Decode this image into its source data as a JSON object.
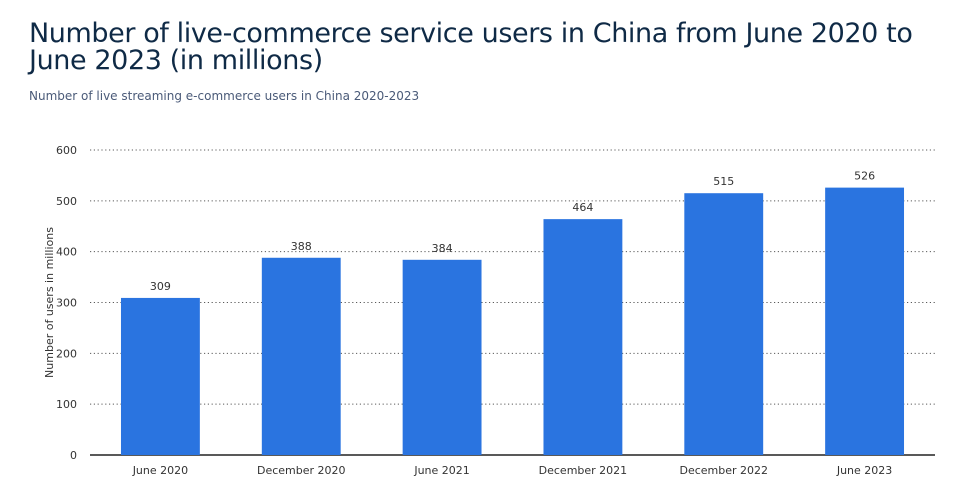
{
  "title": "Number of live-commerce service users in China from June 2020 to June 2023 (in millions)",
  "subtitle": "Number of live streaming e-commerce users in China 2020-2023",
  "colors": {
    "bar": "#2a74e0",
    "text": "#333333",
    "grid": "#5a5a5a",
    "title": "#0f2a46"
  },
  "chart_data": {
    "type": "bar",
    "title": "Number of live-commerce service users in China from June 2020 to June 2023 (in millions)",
    "subtitle": "Number of live streaming e-commerce users in China 2020-2023",
    "xlabel": "",
    "ylabel": "Number of users in millions",
    "categories": [
      "June 2020",
      "December 2020",
      "June 2021",
      "December 2021",
      "December 2022",
      "June 2023"
    ],
    "values": [
      309,
      388,
      384,
      464,
      515,
      526
    ],
    "data_labels": [
      "309",
      "388",
      "384",
      "464",
      "515",
      "526"
    ],
    "ylim": [
      0,
      600
    ],
    "yticks": [
      0,
      100,
      200,
      300,
      400,
      500,
      600
    ],
    "grid": true,
    "legend": "none"
  }
}
